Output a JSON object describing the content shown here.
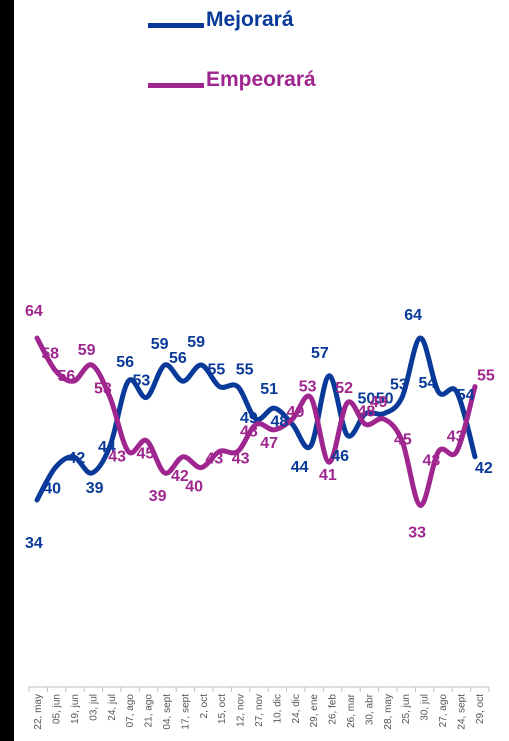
{
  "chart_data": {
    "type": "line",
    "categories": [
      "22, may",
      "05, jun",
      "19, jun",
      "03, jul",
      "24, jul",
      "07, ago",
      "21, ago",
      "04, sept",
      "17, sept",
      "2, oct",
      "15, oct",
      "12, nov",
      "27, nov",
      "10, dic",
      "24, dic",
      "29, ene",
      "26, feb",
      "26, mar",
      "30, abr",
      "28, may",
      "25, jun",
      "30, jul",
      "27, ago",
      "24, sept",
      "29, oct"
    ],
    "series": [
      {
        "name": "Mejorará",
        "color": "#0a3a99",
        "values": [
          34,
          40,
          42,
          39,
          44,
          56,
          53,
          59,
          56,
          59,
          55,
          55,
          49,
          51,
          48,
          44,
          57,
          46,
          50,
          50,
          53,
          64,
          54,
          54,
          42
        ]
      },
      {
        "name": "Empeorará",
        "color": "#a0268f",
        "values": [
          64,
          58,
          56,
          59,
          53,
          43,
          45,
          39,
          42,
          40,
          43,
          43,
          48,
          47,
          49,
          53,
          41,
          52,
          48,
          49,
          45,
          33,
          43,
          43,
          55
        ]
      }
    ],
    "legend": "top",
    "grid": false,
    "title": "",
    "xlabel": "",
    "ylabel": ""
  }
}
